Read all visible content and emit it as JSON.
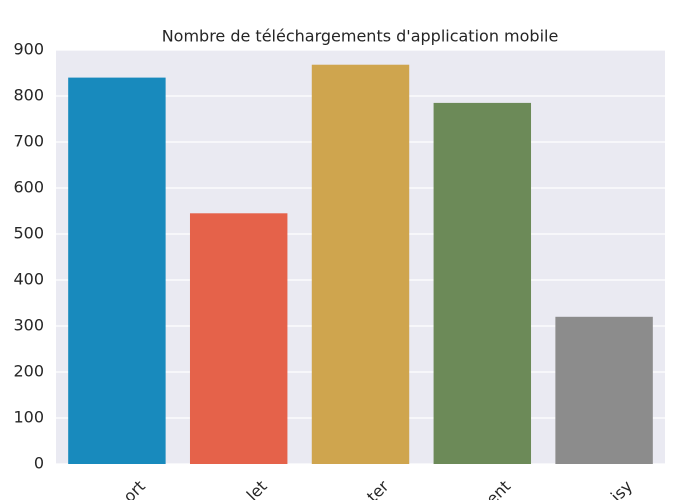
{
  "chart_data": {
    "type": "bar",
    "title": "Nombre de téléchargements d'application mobile",
    "categories": [
      "ort",
      "let",
      "ter",
      "ent",
      "isy"
    ],
    "values": [
      840,
      545,
      868,
      785,
      320
    ],
    "colors": [
      "#188abd",
      "#e5624a",
      "#cfa54e",
      "#6c8a58",
      "#8c8c8c"
    ],
    "ylim": [
      0,
      900
    ],
    "yticks": [
      0,
      100,
      200,
      300,
      400,
      500,
      600,
      700,
      800,
      900
    ],
    "grid": true
  }
}
